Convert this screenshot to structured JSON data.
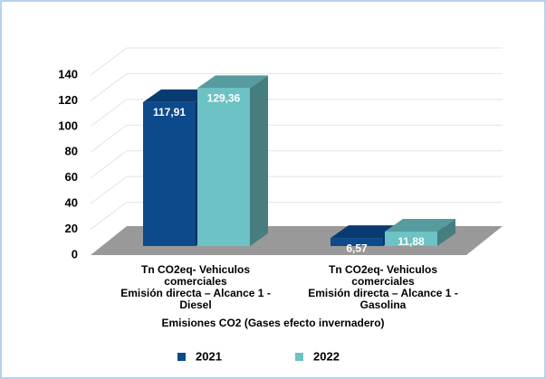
{
  "chart_data": {
    "type": "bar3d",
    "categories": [
      "Tn CO2eq- Vehiculos\ncomerciales\nEmisión directa – Alcance 1 -\nDiesel",
      "Tn CO2eq- Vehiculos\ncomerciales\nEmisión directa – Alcance 1 -\nGasolina"
    ],
    "x_label": "Emisiones CO2 (Gases efecto invernadero)",
    "series": [
      {
        "name": "2021",
        "color": "#0d4a8c",
        "values": [
          117.91,
          6.57
        ],
        "value_labels": [
          "117,91",
          "6,57"
        ]
      },
      {
        "name": "2022",
        "color": "#6cc2c4",
        "values": [
          129.36,
          11.88
        ],
        "value_labels": [
          "129,36",
          "11,88"
        ]
      }
    ],
    "ylim": [
      0,
      140
    ],
    "yticks": [
      0,
      20,
      40,
      60,
      80,
      100,
      120,
      140
    ],
    "grid": true,
    "legend": "bottom"
  }
}
